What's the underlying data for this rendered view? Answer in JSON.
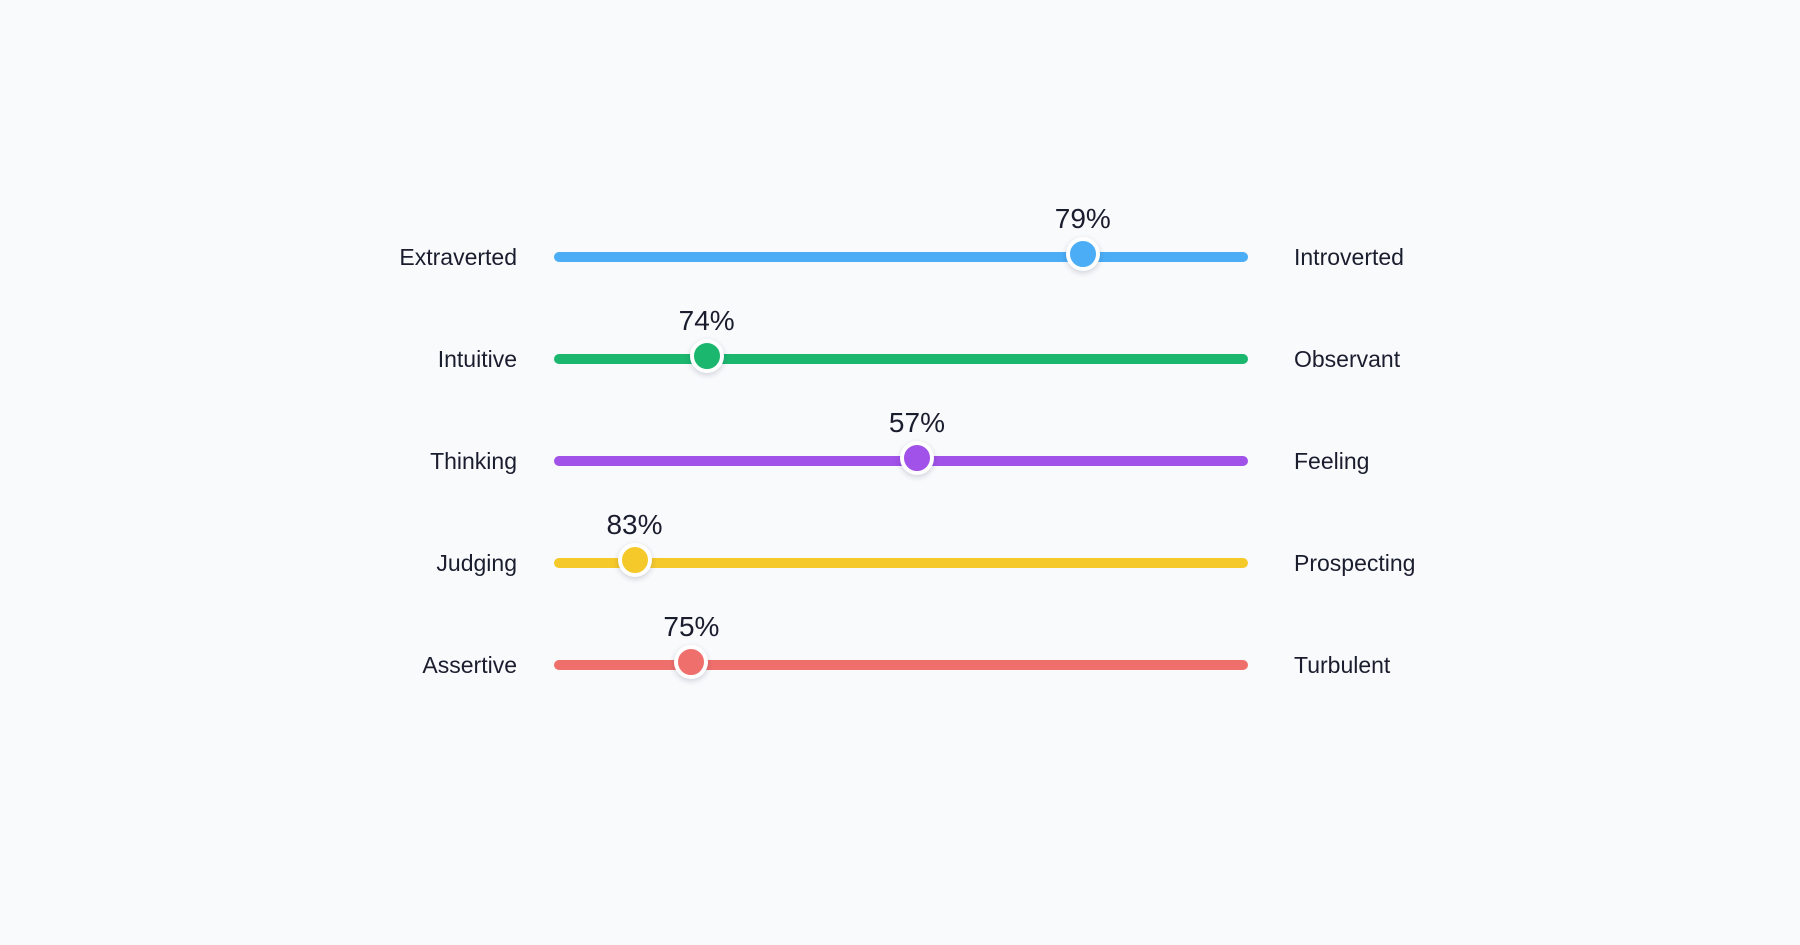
{
  "traits": [
    {
      "left_label": "Extraverted",
      "right_label": "Introverted",
      "percent_label": "79%",
      "position": 0.762,
      "color": "#4badf6"
    },
    {
      "left_label": "Intuitive",
      "right_label": "Observant",
      "percent_label": "74%",
      "position": 0.22,
      "color": "#1bb76e"
    },
    {
      "left_label": "Thinking",
      "right_label": "Feeling",
      "percent_label": "57%",
      "position": 0.523,
      "color": "#a152e8"
    },
    {
      "left_label": "Judging",
      "right_label": "Prospecting",
      "percent_label": "83%",
      "position": 0.116,
      "color": "#f6c92b"
    },
    {
      "left_label": "Assertive",
      "right_label": "Turbulent",
      "percent_label": "75%",
      "position": 0.198,
      "color": "#ef6f6c"
    }
  ]
}
